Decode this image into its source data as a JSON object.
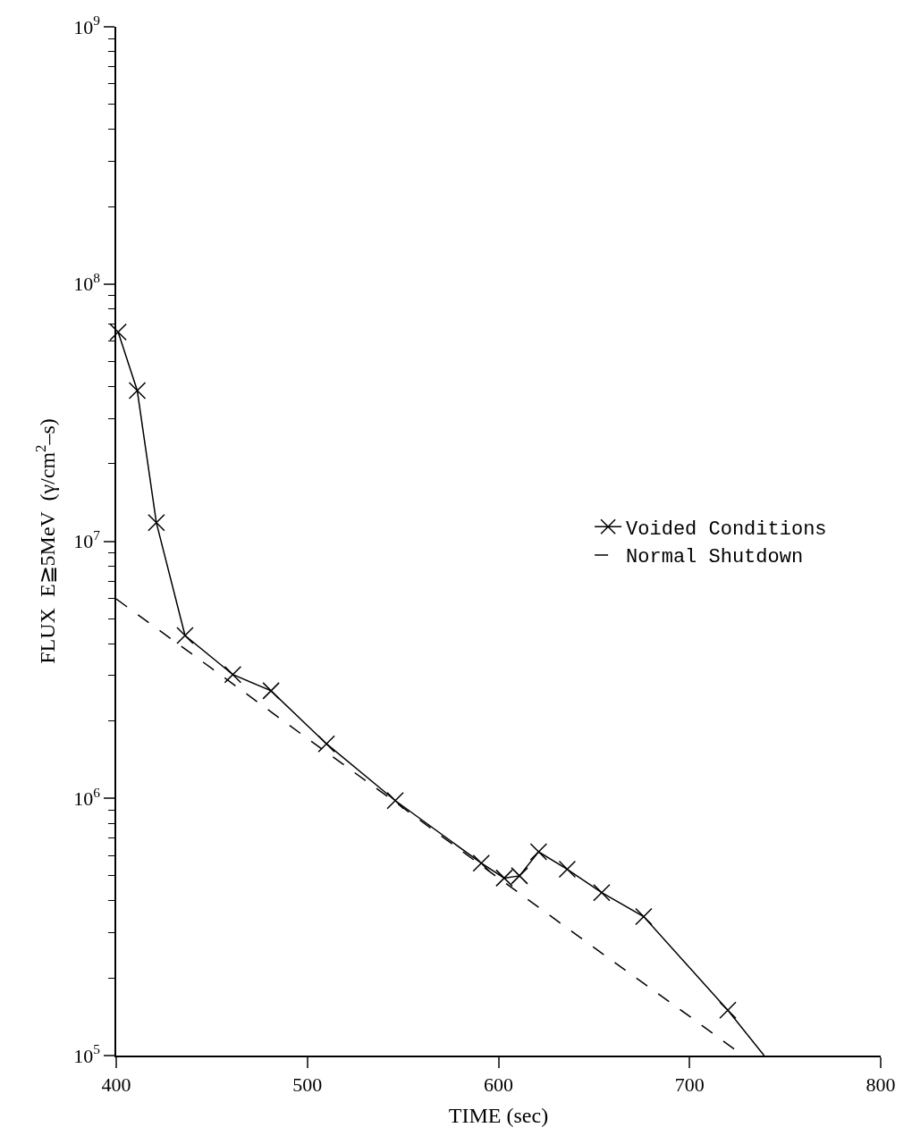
{
  "chart_data": {
    "type": "line",
    "xlabel": "TIME (sec)",
    "ylabel": "FLUX  E≧5MeV  (γ/cm$^{2}$–s)",
    "log": "y",
    "grid": false,
    "legend": "right",
    "xlim": [
      400,
      800
    ],
    "xticks": [
      400,
      500,
      600,
      700,
      800
    ],
    "ylim": [
      100000,
      1000000000
    ],
    "yticks": [
      {
        "value": 100000,
        "label": "10$^{5}$"
      },
      {
        "value": 200000,
        "label": null
      },
      {
        "value": 300000,
        "label": null
      },
      {
        "value": 400000,
        "label": null
      },
      {
        "value": 500000,
        "label": null
      },
      {
        "value": 600000,
        "label": null
      },
      {
        "value": 700000,
        "label": null
      },
      {
        "value": 800000,
        "label": null
      },
      {
        "value": 900000,
        "label": null
      },
      {
        "value": 1000000,
        "label": "10$^{6}$"
      },
      {
        "value": 2000000,
        "label": null
      },
      {
        "value": 3000000,
        "label": null
      },
      {
        "value": 4000000,
        "label": null
      },
      {
        "value": 5000000,
        "label": null
      },
      {
        "value": 6000000,
        "label": null
      },
      {
        "value": 7000000,
        "label": null
      },
      {
        "value": 8000000,
        "label": null
      },
      {
        "value": 9000000,
        "label": null
      },
      {
        "value": 10000000,
        "label": "10$^{7}$"
      },
      {
        "value": 20000000,
        "label": null
      },
      {
        "value": 30000000,
        "label": null
      },
      {
        "value": 40000000,
        "label": null
      },
      {
        "value": 50000000,
        "label": null
      },
      {
        "value": 60000000,
        "label": null
      },
      {
        "value": 70000000,
        "label": null
      },
      {
        "value": 80000000,
        "label": null
      },
      {
        "value": 90000000,
        "label": null
      },
      {
        "value": 100000000,
        "label": "10$^{8}$"
      },
      {
        "value": 200000000,
        "label": null
      },
      {
        "value": 300000000,
        "label": null
      },
      {
        "value": 400000000,
        "label": null
      },
      {
        "value": 500000000,
        "label": null
      },
      {
        "value": 600000000,
        "label": null
      },
      {
        "value": 700000000,
        "label": null
      },
      {
        "value": 800000000,
        "label": null
      },
      {
        "value": 900000000,
        "label": null
      },
      {
        "value": 1000000000,
        "label": "10$^{9}$"
      }
    ],
    "series": [
      {
        "name": "Voided Conditions",
        "color": "#000000",
        "marker": "cross",
        "line_style": "solid",
        "x": [
          401,
          411,
          421,
          436,
          461,
          481,
          510,
          546,
          591,
          603,
          611,
          621,
          636,
          654,
          676,
          720
        ],
        "values": [
          65000000,
          38500000,
          11800000,
          4300000,
          3030000,
          2620000,
          1630000,
          980000,
          560000,
          490000,
          500000,
          620000,
          530000,
          430000,
          347000,
          150000
        ]
      },
      {
        "name": "Normal Shutdown",
        "color": "#000000",
        "marker": "none",
        "line_style": "dashed",
        "x": [
          400,
          450,
          500,
          545,
          600,
          650,
          700,
          728
        ],
        "values": [
          5960000,
          3200000,
          1710000,
          980000,
          490000,
          263000,
          142000,
          100000
        ]
      },
      {
        "color": "#000000",
        "marker": "none",
        "line_style": "solid",
        "x": [
          720,
          739
        ],
        "values": [
          150000,
          100000
        ]
      }
    ]
  }
}
